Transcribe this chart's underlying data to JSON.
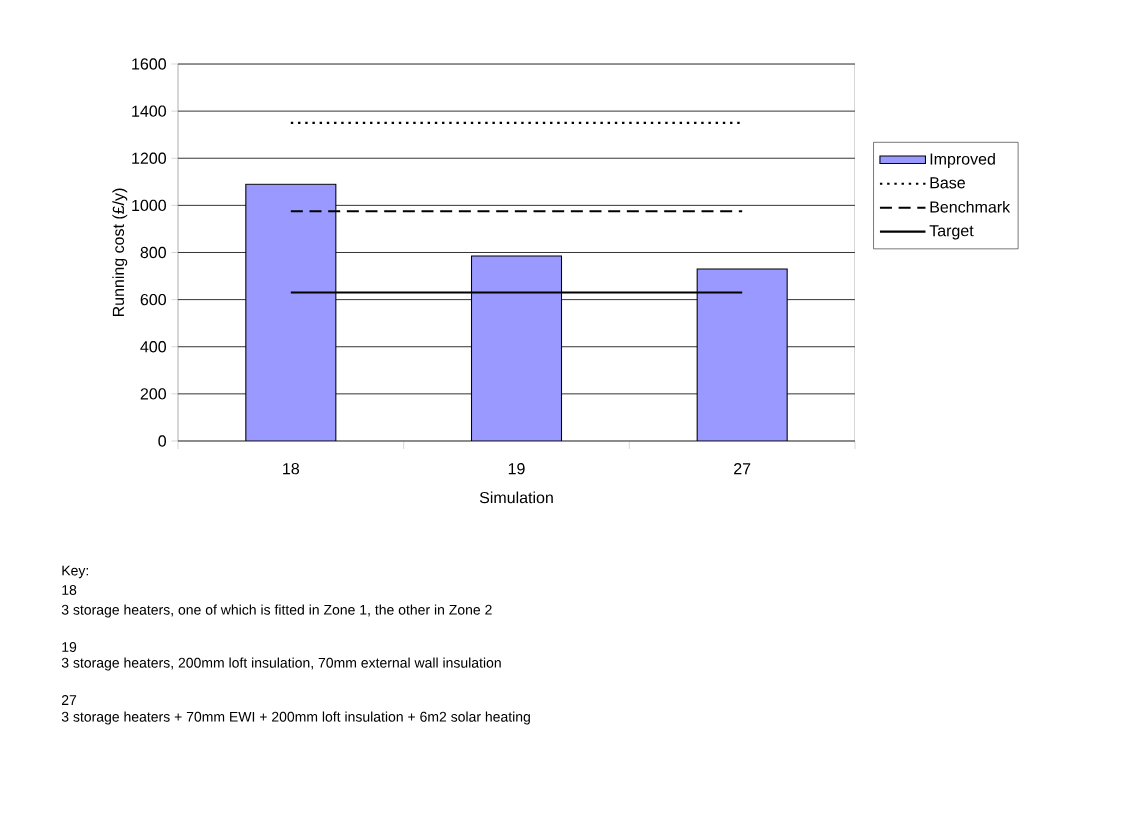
{
  "chart_data": {
    "type": "bar",
    "xlabel": "Simulation",
    "ylabel": "Running cost (£/y)",
    "categories": [
      "18",
      "19",
      "27"
    ],
    "series": [
      {
        "name": "Improved",
        "color": "#9999ff",
        "values": [
          1090,
          785,
          730
        ]
      },
      {
        "name": "Base",
        "type": "line",
        "color": "#000000",
        "line_style": "dotted",
        "values": [
          1350,
          1350,
          1350
        ]
      },
      {
        "name": "Benchmark",
        "type": "line",
        "color": "#000000",
        "line_style": "dashed",
        "values": [
          975,
          975,
          975
        ]
      },
      {
        "name": "Target",
        "type": "line",
        "color": "#000000",
        "line_style": "solid",
        "values": [
          630,
          630,
          630
        ]
      }
    ],
    "ylim": [
      0,
      1600
    ],
    "yticks": [
      0,
      200,
      400,
      600,
      800,
      1000,
      1200,
      1400,
      1600
    ],
    "grid": "y",
    "legend": "right",
    "marker": "none",
    "annotations": [
      "Key:",
      "18",
      "3 storage heaters, one of which is fitted in Zone 1, the other in Zone 2",
      "19",
      "3 storage heaters, 200mm loft insulation, 70mm external wall insulation",
      "27",
      "3 storage heaters + 70mm EWI + 200mm loft insulation + 6m2 solar heating"
    ]
  }
}
